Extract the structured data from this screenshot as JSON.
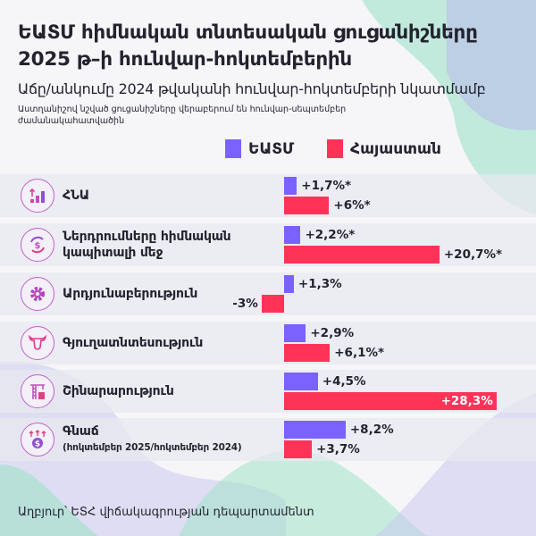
{
  "header": {
    "title_line1": "ԵԱՏՄ հիմնական տնտեսական ցուցանիշները",
    "title_line2": "2025 թ–ի հունվար-հոկտեմբերին",
    "subtitle": "Աճը/անկումը 2024 թվականի հունվար-հոկտեմբերի նկատմամբ",
    "note": "Աստղանիշով նշված ցուցանիշները վերաբերում են հունվար-սեպտեմբեր ժամանակահատվածին"
  },
  "colors": {
    "eaeu": "#7b61ff",
    "armenia": "#ff3358",
    "row_bg": "#ebebf1",
    "background": "#f6f6f9"
  },
  "chart_data": {
    "type": "bar",
    "orientation": "horizontal",
    "legend_position": "top",
    "categories": [
      {
        "label": "ՀՆԱ",
        "icon": "gdp-chart-icon"
      },
      {
        "label": "Ներդրումները հիմնական կապիտալի մեջ",
        "icon": "investment-cycle-icon"
      },
      {
        "label": "Արդյունաբերություն",
        "icon": "gear-icon"
      },
      {
        "label": "Գյուղատնտեսություն",
        "icon": "cow-icon"
      },
      {
        "label": "Շինարարություն",
        "icon": "crane-icon"
      },
      {
        "label": "Գնաճ",
        "sublabel": "(հոկտեմբեր 2025/հոկտեմբեր 2024)",
        "icon": "price-rise-icon"
      }
    ],
    "series": [
      {
        "name": "ԵԱՏՄ",
        "values": [
          1.7,
          2.2,
          1.3,
          2.9,
          4.5,
          8.2
        ],
        "labels": [
          "+1,7%*",
          "+2,2%*",
          "+1,3%",
          "+2,9%",
          "+4,5%",
          "+8,2%"
        ]
      },
      {
        "name": "Հայաստան",
        "values": [
          6,
          20.7,
          -3,
          6.1,
          28.3,
          3.7
        ],
        "labels": [
          "+6%*",
          "+20,7%*",
          "-3%",
          "+6,1%*",
          "+28,3%",
          "+3,7%"
        ]
      }
    ],
    "unit": "%"
  },
  "footer": {
    "source": "Աղբյուր՝ ԵՏՀ վիճակագրության դեպարտամենտ"
  }
}
